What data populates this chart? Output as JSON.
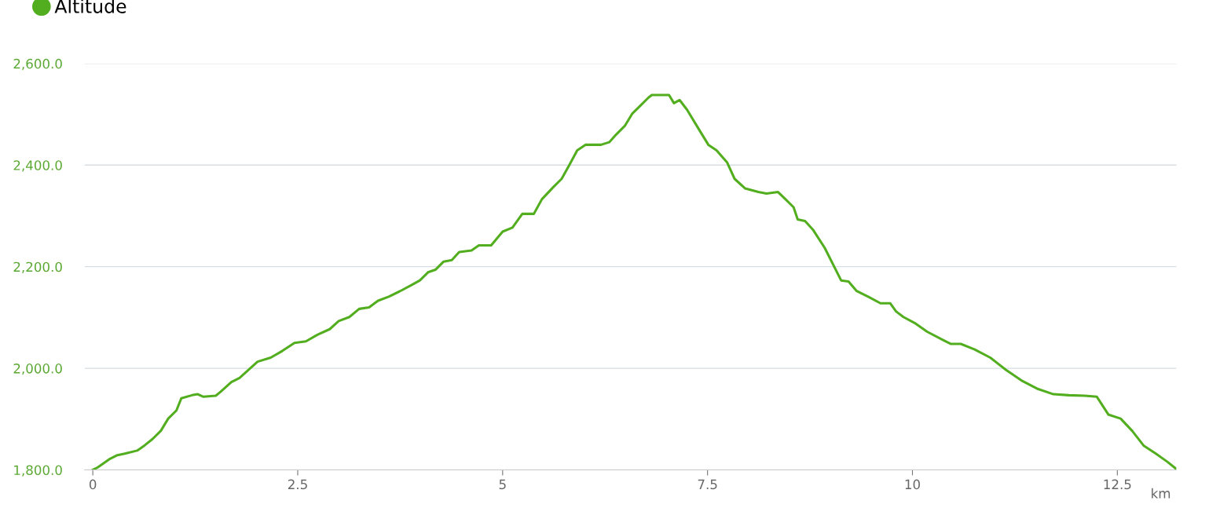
{
  "chart_data": {
    "type": "line",
    "legend": "top left",
    "grid": "y",
    "xlabel": "km",
    "xlim": [
      -0.1,
      13.22
    ],
    "xticks": [
      0,
      2.5,
      5,
      7.5,
      10,
      12.5
    ],
    "ylim": [
      1800,
      2600
    ],
    "yticks": [
      {
        "value": 1800,
        "label": "1,800.0"
      },
      {
        "value": 2000,
        "label": "2,000.0"
      },
      {
        "value": 2200,
        "label": "2,200.0"
      },
      {
        "value": 2400,
        "label": "2,400.0"
      },
      {
        "value": 2600,
        "label": "2,600.0"
      }
    ],
    "series": [
      {
        "name": "Altitude",
        "color": "#52ae1f",
        "x": [
          0,
          0.06,
          0.2,
          0.3,
          0.39,
          0.54,
          0.63,
          0.73,
          0.83,
          0.92,
          1.02,
          1.08,
          1.21,
          1.28,
          1.35,
          1.5,
          1.56,
          1.69,
          1.79,
          1.88,
          2.01,
          2.17,
          2.31,
          2.46,
          2.6,
          2.74,
          2.89,
          3.0,
          3.13,
          3.25,
          3.37,
          3.48,
          3.61,
          3.75,
          3.9,
          3.99,
          4.09,
          4.18,
          4.28,
          4.38,
          4.47,
          4.62,
          4.71,
          4.86,
          5.0,
          5.12,
          5.24,
          5.38,
          5.48,
          5.62,
          5.72,
          5.82,
          5.91,
          6.01,
          6.2,
          6.3,
          6.39,
          6.49,
          6.58,
          6.68,
          6.78,
          6.82,
          7.03,
          7.09,
          7.16,
          7.25,
          7.4,
          7.51,
          7.61,
          7.74,
          7.83,
          7.96,
          8.12,
          8.22,
          8.36,
          8.45,
          8.55,
          8.6,
          8.69,
          8.79,
          8.93,
          9.13,
          9.22,
          9.32,
          9.46,
          9.61,
          9.73,
          9.8,
          9.89,
          10.04,
          10.18,
          10.37,
          10.47,
          10.59,
          10.76,
          10.95,
          11.14,
          11.33,
          11.52,
          11.72,
          11.91,
          12.1,
          12.25,
          12.39,
          12.54,
          12.68,
          12.82,
          12.97,
          13.11,
          13.21
        ],
        "values": [
          1800,
          1805,
          1821,
          1829,
          1832,
          1838,
          1848,
          1861,
          1877,
          1901,
          1917,
          1941,
          1947,
          1949,
          1944,
          1946,
          1954,
          1973,
          1981,
          1994,
          2013,
          2021,
          2034,
          2050,
          2053,
          2066,
          2077,
          2093,
          2101,
          2117,
          2120,
          2133,
          2141,
          2152,
          2165,
          2173,
          2189,
          2194,
          2210,
          2213,
          2229,
          2232,
          2242,
          2242,
          2269,
          2277,
          2304,
          2304,
          2333,
          2357,
          2373,
          2402,
          2429,
          2440,
          2440,
          2445,
          2461,
          2477,
          2501,
          2517,
          2533,
          2538,
          2538,
          2522,
          2528,
          2509,
          2469,
          2440,
          2429,
          2405,
          2373,
          2354,
          2347,
          2344,
          2347,
          2333,
          2317,
          2293,
          2290,
          2272,
          2237,
          2173,
          2171,
          2152,
          2141,
          2128,
          2128,
          2112,
          2101,
          2088,
          2072,
          2056,
          2048,
          2048,
          2037,
          2021,
          1997,
          1976,
          1960,
          1949,
          1947,
          1946,
          1944,
          1909,
          1901,
          1877,
          1848,
          1832,
          1816,
          1803
        ]
      }
    ]
  }
}
